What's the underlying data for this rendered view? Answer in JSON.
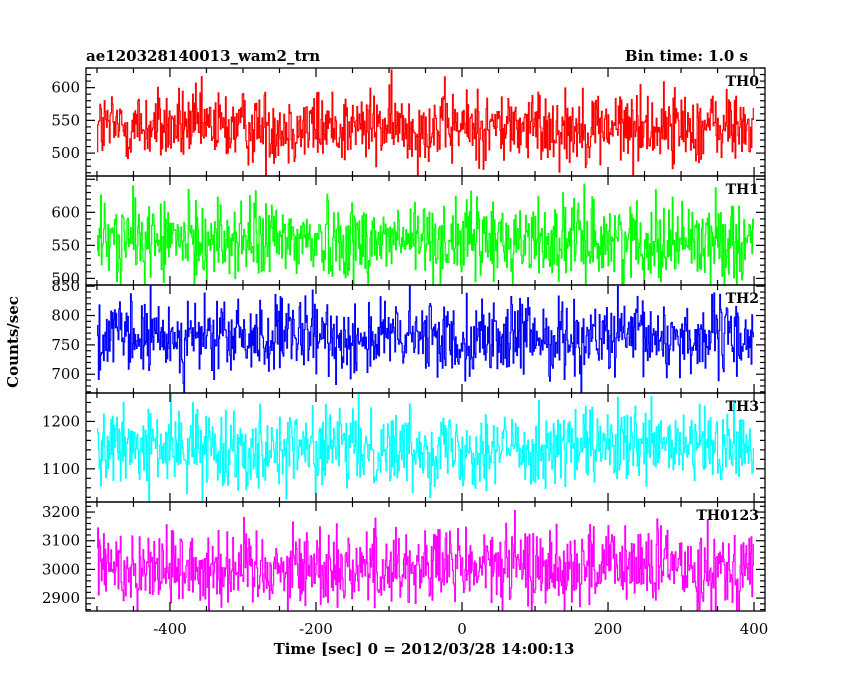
{
  "chart_data": {
    "type": "line",
    "title_left": "ae120328140013_wam2_trn",
    "title_right": "Bin time: 1.0 s",
    "xlabel": "Time [sec] 0 = 2012/03/28 14:00:13",
    "ylabel": "Counts/sec",
    "xlim": [
      -515,
      415
    ],
    "xticks": [
      -400,
      -200,
      0,
      200,
      400
    ],
    "x_start": -500,
    "x_end": 400,
    "bin_time": 1.0,
    "panels": [
      {
        "name": "TH0",
        "color": "#ff0000",
        "ylim": [
          465,
          630
        ],
        "yticks": [
          500,
          550,
          600
        ],
        "mean": 540,
        "spread": 28
      },
      {
        "name": "TH1",
        "color": "#00ff00",
        "ylim": [
          490,
          655
        ],
        "yticks": [
          500,
          550,
          600
        ],
        "mean": 558,
        "spread": 30
      },
      {
        "name": "TH2",
        "color": "#0000ff",
        "ylim": [
          668,
          852
        ],
        "yticks": [
          700,
          750,
          800,
          850
        ],
        "mean": 762,
        "spread": 32
      },
      {
        "name": "TH3",
        "color": "#00ffff",
        "ylim": [
          1030,
          1260
        ],
        "yticks": [
          1100,
          1200
        ],
        "mean": 1145,
        "spread": 40
      },
      {
        "name": "TH0123",
        "color": "#ff00ff",
        "ylim": [
          2855,
          3235
        ],
        "yticks": [
          2900,
          3000,
          3100,
          3200
        ],
        "mean": 3010,
        "spread": 70
      }
    ]
  }
}
